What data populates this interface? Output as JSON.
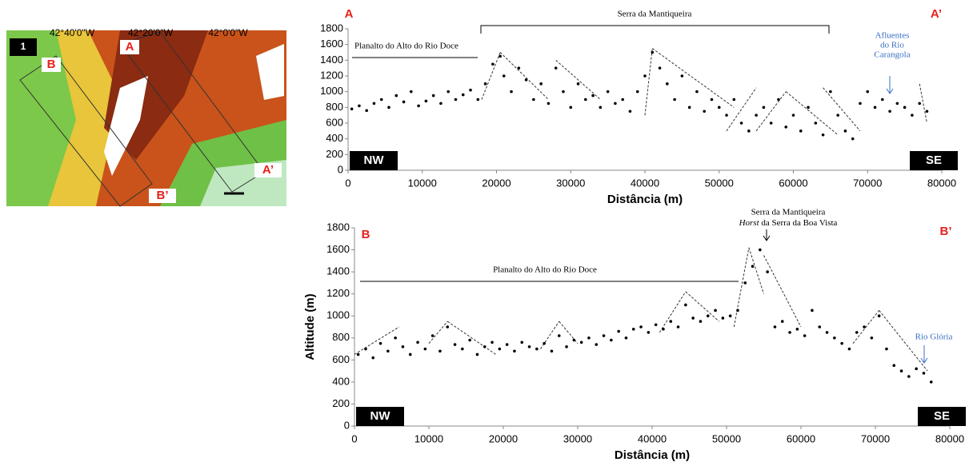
{
  "map": {
    "panel": "1",
    "labels": [
      "A",
      "B",
      "A’",
      "B’"
    ],
    "coords": [
      "42°40'0\"W",
      "42°20'0\"W",
      "42°0'0\"W"
    ]
  },
  "chart_data": [
    {
      "type": "scatter",
      "xlabel": "Distância (m)",
      "color": "#000000",
      "xlim": [
        0,
        80000
      ],
      "xticks": [
        0,
        10000,
        20000,
        30000,
        40000,
        50000,
        60000,
        70000,
        80000
      ],
      "ylim": [
        0,
        1800
      ],
      "yticks": [
        0,
        200,
        400,
        600,
        800,
        1000,
        1200,
        1400,
        1600,
        1800
      ],
      "annotations": {
        "start": "A",
        "end": "A’",
        "range": "Serra da Mantiqueira",
        "plateau": "Planalto do Alto do Rio Doce",
        "river": [
          "Afluentes",
          "do Rio",
          "Carangola"
        ],
        "west": "NW",
        "east": "SE"
      },
      "x": [
        500,
        1500,
        2500,
        3500,
        4500,
        5500,
        6500,
        7500,
        8500,
        9500,
        10500,
        11500,
        12500,
        13500,
        14500,
        15500,
        16500,
        17500,
        18500,
        19500,
        20500,
        21000,
        22000,
        23000,
        24000,
        25000,
        26000,
        27000,
        28000,
        29000,
        30000,
        31000,
        32000,
        33000,
        34000,
        35000,
        36000,
        37000,
        38000,
        39000,
        40000,
        41000,
        42000,
        43000,
        44000,
        45000,
        46000,
        47000,
        48000,
        49000,
        50000,
        51000,
        52000,
        53000,
        54000,
        55000,
        56000,
        57000,
        58000,
        59000,
        60000,
        61000,
        62000,
        63000,
        64000,
        65000,
        66000,
        67000,
        68000,
        69000,
        70000,
        71000,
        72000,
        73000,
        74000,
        75000,
        76000,
        77000,
        78000
      ],
      "values": [
        780,
        820,
        760,
        850,
        900,
        800,
        950,
        870,
        1000,
        820,
        880,
        950,
        850,
        1000,
        900,
        960,
        1020,
        900,
        1100,
        1350,
        1450,
        1200,
        1000,
        1300,
        1150,
        900,
        1100,
        850,
        1300,
        1000,
        800,
        1100,
        900,
        950,
        800,
        1000,
        850,
        900,
        750,
        1000,
        1200,
        1500,
        1300,
        1100,
        900,
        1200,
        800,
        1000,
        750,
        900,
        800,
        700,
        900,
        600,
        500,
        700,
        800,
        600,
        900,
        550,
        700,
        500,
        800,
        600,
        450,
        1000,
        700,
        500,
        400,
        850,
        1000,
        800,
        900,
        750,
        850,
        800,
        700,
        850,
        750
      ],
      "trend_lines": [
        {
          "x": [
            18000,
            20500
          ],
          "y": [
            900,
            1500
          ]
        },
        {
          "x": [
            20500,
            27000
          ],
          "y": [
            1500,
            900
          ]
        },
        {
          "x": [
            28000,
            34000
          ],
          "y": [
            1400,
            900
          ]
        },
        {
          "x": [
            40000,
            41000
          ],
          "y": [
            700,
            1550
          ]
        },
        {
          "x": [
            41000,
            52000
          ],
          "y": [
            1550,
            800
          ]
        },
        {
          "x": [
            51000,
            55000
          ],
          "y": [
            500,
            1050
          ]
        },
        {
          "x": [
            55000,
            59000
          ],
          "y": [
            500,
            1000
          ]
        },
        {
          "x": [
            59000,
            66000
          ],
          "y": [
            1000,
            450
          ]
        },
        {
          "x": [
            64000,
            69000
          ],
          "y": [
            1050,
            500
          ]
        },
        {
          "x": [
            77000,
            78000
          ],
          "y": [
            1100,
            600
          ]
        }
      ]
    },
    {
      "type": "scatter",
      "xlabel": "Distância (m)",
      "ylabel": "Altitude (m)",
      "color": "#000000",
      "xlim": [
        0,
        80000
      ],
      "xticks": [
        0,
        10000,
        20000,
        30000,
        40000,
        50000,
        60000,
        70000,
        80000
      ],
      "ylim": [
        0,
        1800
      ],
      "yticks": [
        0,
        200,
        400,
        600,
        800,
        1000,
        1200,
        1400,
        1600,
        1800
      ],
      "annotations": {
        "start": "B",
        "end": "B’",
        "range": "Serra da Mantiqueira",
        "horst": {
          "italic": "Horst",
          "rest": "da Serra da Boa Vista"
        },
        "plateau": "Planalto do Alto do Rio Doce",
        "river": "Rio Glória",
        "west": "NW",
        "east": "SE"
      },
      "x": [
        500,
        1500,
        2500,
        3500,
        4500,
        5500,
        6500,
        7500,
        8500,
        9500,
        10500,
        11500,
        12500,
        13500,
        14500,
        15500,
        16500,
        17500,
        18500,
        19500,
        20500,
        21500,
        22500,
        23500,
        24500,
        25500,
        26500,
        27500,
        28500,
        29500,
        30500,
        31500,
        32500,
        33500,
        34500,
        35500,
        36500,
        37500,
        38500,
        39500,
        40500,
        41500,
        42500,
        43500,
        44500,
        45500,
        46500,
        47500,
        48500,
        49500,
        50500,
        51500,
        52500,
        53500,
        54500,
        55500,
        56500,
        57500,
        58500,
        59500,
        60500,
        61500,
        62500,
        63500,
        64500,
        65500,
        66500,
        67500,
        68500,
        69500,
        70500,
        71500,
        72500,
        73500,
        74500,
        75500,
        76500,
        77500
      ],
      "values": [
        650,
        700,
        620,
        750,
        680,
        800,
        720,
        650,
        760,
        700,
        820,
        680,
        900,
        740,
        700,
        780,
        650,
        720,
        760,
        700,
        740,
        680,
        760,
        720,
        700,
        750,
        680,
        820,
        720,
        780,
        760,
        800,
        740,
        820,
        780,
        860,
        800,
        880,
        900,
        850,
        920,
        880,
        950,
        900,
        1100,
        980,
        950,
        1000,
        1050,
        980,
        1000,
        1050,
        1300,
        1450,
        1600,
        1400,
        900,
        950,
        850,
        880,
        820,
        1050,
        900,
        850,
        800,
        750,
        700,
        850,
        900,
        800,
        1000,
        700,
        550,
        500,
        450,
        520,
        480,
        400
      ],
      "trend_lines": [
        {
          "x": [
            0,
            6000
          ],
          "y": [
            650,
            900
          ]
        },
        {
          "x": [
            10000,
            12500
          ],
          "y": [
            750,
            950
          ]
        },
        {
          "x": [
            12500,
            19000
          ],
          "y": [
            950,
            650
          ]
        },
        {
          "x": [
            25000,
            27500
          ],
          "y": [
            700,
            950
          ]
        },
        {
          "x": [
            27500,
            30000
          ],
          "y": [
            950,
            750
          ]
        },
        {
          "x": [
            41000,
            44500
          ],
          "y": [
            850,
            1220
          ]
        },
        {
          "x": [
            44500,
            49000
          ],
          "y": [
            1220,
            950
          ]
        },
        {
          "x": [
            51000,
            53000
          ],
          "y": [
            900,
            1620
          ]
        },
        {
          "x": [
            53000,
            55000
          ],
          "y": [
            1620,
            1200
          ]
        },
        {
          "x": [
            55000,
            60000
          ],
          "y": [
            1550,
            900
          ]
        },
        {
          "x": [
            67000,
            70500
          ],
          "y": [
            750,
            1050
          ]
        },
        {
          "x": [
            70500,
            77000
          ],
          "y": [
            1050,
            500
          ]
        }
      ]
    }
  ]
}
